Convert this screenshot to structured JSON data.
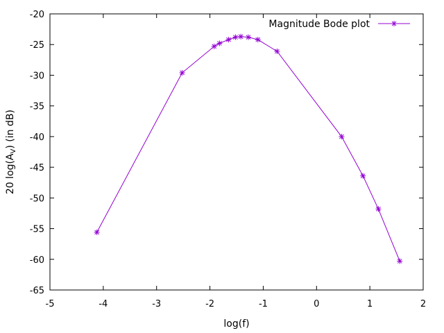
{
  "chart_data": {
    "type": "line",
    "title": "",
    "xlabel": "log(f)",
    "ylabel": "20 log(A",
    "ylabel_sub": "V",
    "ylabel_tail": ") (in dB)",
    "xlim": [
      -5,
      2
    ],
    "ylim": [
      -65,
      -20
    ],
    "xticks": [
      -5,
      -4,
      -3,
      -2,
      -1,
      0,
      1,
      2
    ],
    "yticks": [
      -20,
      -25,
      -30,
      -35,
      -40,
      -45,
      -50,
      -55,
      -60,
      -65
    ],
    "grid": false,
    "legend": "top-right",
    "series": [
      {
        "name": "Magnitude Bode plot",
        "color": "#9400d3",
        "marker": "asterisk",
        "x": [
          -4.12,
          -2.52,
          -1.92,
          -1.82,
          -1.65,
          -1.52,
          -1.42,
          -1.28,
          -1.1,
          -0.74,
          0.47,
          0.87,
          1.16,
          1.56
        ],
        "y": [
          -55.6,
          -29.6,
          -25.3,
          -24.8,
          -24.2,
          -23.8,
          -23.7,
          -23.8,
          -24.2,
          -26.1,
          -40.0,
          -46.4,
          -51.8,
          -60.3
        ]
      }
    ]
  }
}
